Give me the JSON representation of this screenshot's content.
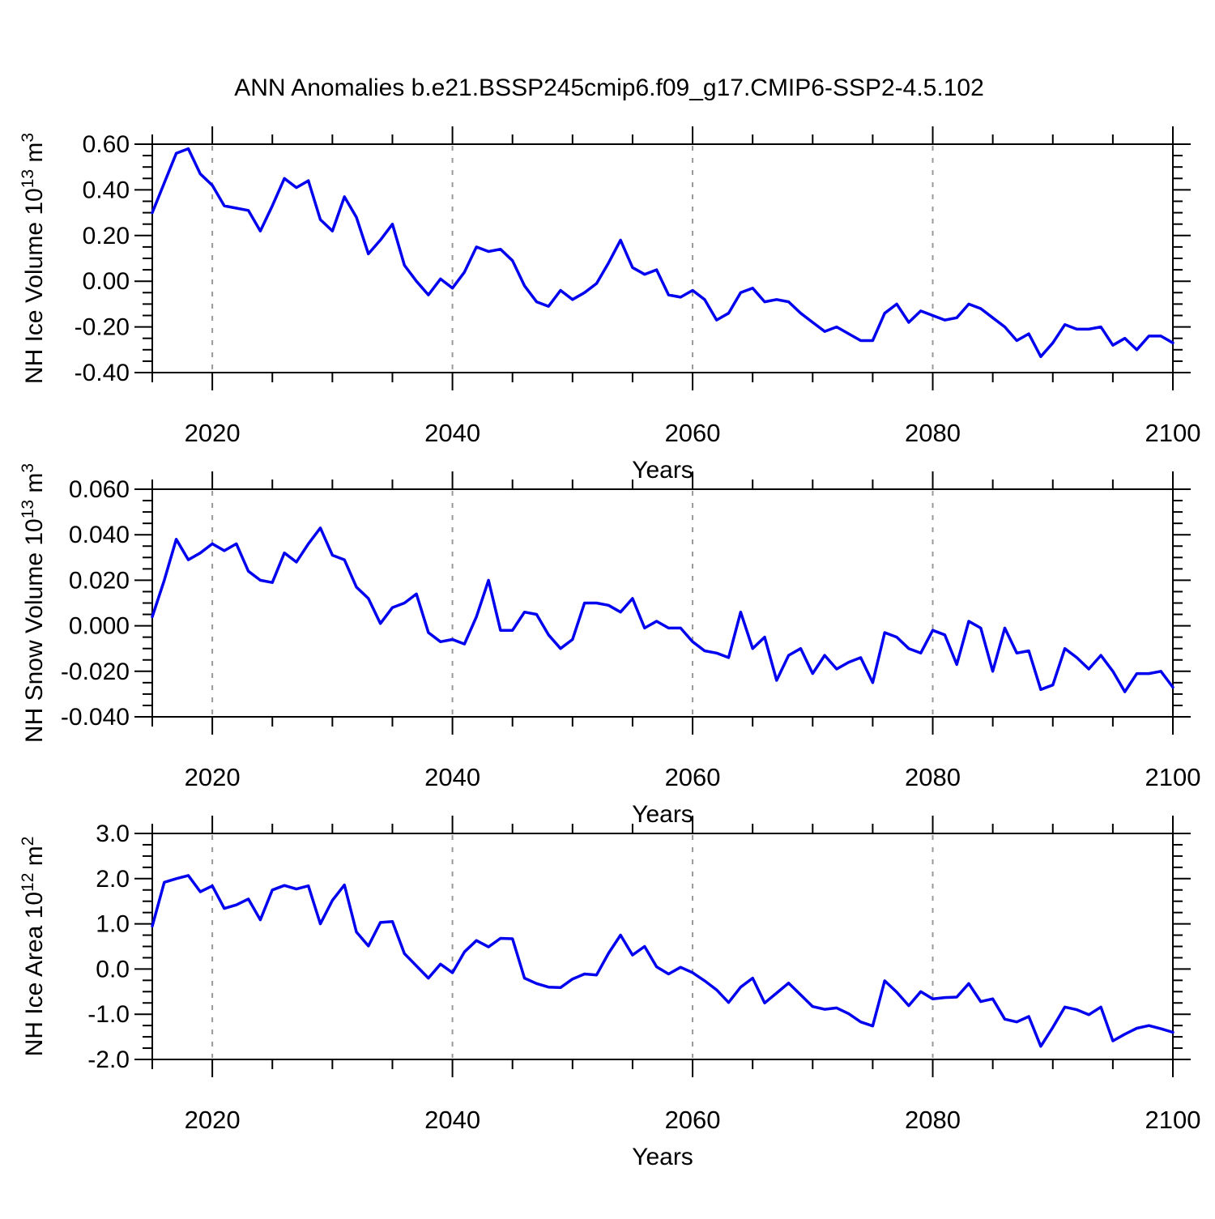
{
  "title": "ANN Anomalies b.e21.BSSP245cmip6.f09_g17.CMIP6-SSP2-4.5.102",
  "colors": {
    "line": "#0000ee",
    "grid": "#999999",
    "frame": "#000000",
    "text": "#000000",
    "background": "#ffffff"
  },
  "chart_data": [
    {
      "type": "line",
      "title": "",
      "xlabel": "Years",
      "ylabel": "NH Ice Volume 10^13 m^3",
      "ylabel_parts": [
        {
          "t": "NH Ice Volume 10"
        },
        {
          "t": "13",
          "sup": true
        },
        {
          "t": " m"
        },
        {
          "t": "3",
          "sup": true
        }
      ],
      "xlim": [
        2015,
        2100
      ],
      "ylim": [
        -0.4,
        0.6
      ],
      "x_step": 1,
      "x_minor_step": 5,
      "xtick_values": [
        2020,
        2040,
        2060,
        2080,
        2100
      ],
      "xtick_labels": [
        "2020",
        "2040",
        "2060",
        "2080",
        "2100"
      ],
      "grid_x": [
        2020,
        2040,
        2060,
        2080
      ],
      "ytick_step": 0.2,
      "y_minor_step": 0.05,
      "ytick_labels": [
        "0.60",
        "0.40",
        "0.20",
        "0.00",
        "-0.20",
        "-0.40"
      ],
      "values": [
        0.3,
        0.43,
        0.56,
        0.58,
        0.47,
        0.42,
        0.33,
        0.32,
        0.31,
        0.22,
        0.33,
        0.45,
        0.41,
        0.44,
        0.27,
        0.22,
        0.37,
        0.28,
        0.12,
        0.18,
        0.25,
        0.07,
        0.0,
        -0.06,
        0.01,
        -0.03,
        0.04,
        0.15,
        0.13,
        0.14,
        0.09,
        -0.02,
        -0.09,
        -0.11,
        -0.04,
        -0.08,
        -0.05,
        -0.01,
        0.08,
        0.18,
        0.06,
        0.03,
        0.05,
        -0.06,
        -0.07,
        -0.04,
        -0.08,
        -0.17,
        -0.14,
        -0.05,
        -0.03,
        -0.09,
        -0.08,
        -0.09,
        -0.14,
        -0.18,
        -0.22,
        -0.2,
        -0.23,
        -0.26,
        -0.26,
        -0.14,
        -0.1,
        -0.18,
        -0.13,
        -0.15,
        -0.17,
        -0.16,
        -0.1,
        -0.12,
        -0.16,
        -0.2,
        -0.26,
        -0.23,
        -0.33,
        -0.27,
        -0.19,
        -0.21,
        -0.21,
        -0.2,
        -0.28,
        -0.25,
        -0.3,
        -0.24,
        -0.24,
        -0.27
      ]
    },
    {
      "type": "line",
      "title": "",
      "xlabel": "Years",
      "ylabel": "NH Snow Volume 10^13 m^3",
      "ylabel_parts": [
        {
          "t": "NH Snow Volume 10"
        },
        {
          "t": "13",
          "sup": true
        },
        {
          "t": " m"
        },
        {
          "t": "3",
          "sup": true
        }
      ],
      "xlim": [
        2015,
        2100
      ],
      "ylim": [
        -0.04,
        0.06
      ],
      "x_step": 1,
      "x_minor_step": 5,
      "xtick_values": [
        2020,
        2040,
        2060,
        2080,
        2100
      ],
      "xtick_labels": [
        "2020",
        "2040",
        "2060",
        "2080",
        "2100"
      ],
      "grid_x": [
        2020,
        2040,
        2060,
        2080
      ],
      "ytick_step": 0.02,
      "y_minor_step": 0.005,
      "ytick_labels": [
        "0.060",
        "0.040",
        "0.020",
        "0.000",
        "-0.020",
        "-0.040"
      ],
      "values": [
        0.004,
        0.02,
        0.038,
        0.029,
        0.032,
        0.036,
        0.033,
        0.036,
        0.024,
        0.02,
        0.019,
        0.032,
        0.028,
        0.036,
        0.043,
        0.031,
        0.029,
        0.017,
        0.012,
        0.001,
        0.008,
        0.01,
        0.014,
        -0.003,
        -0.007,
        -0.006,
        -0.008,
        0.004,
        0.02,
        -0.002,
        -0.002,
        0.006,
        0.005,
        -0.004,
        -0.01,
        -0.006,
        0.01,
        0.01,
        0.009,
        0.006,
        0.012,
        -0.001,
        0.002,
        -0.001,
        -0.001,
        -0.007,
        -0.011,
        -0.012,
        -0.014,
        0.006,
        -0.01,
        -0.005,
        -0.024,
        -0.013,
        -0.01,
        -0.021,
        -0.013,
        -0.019,
        -0.016,
        -0.014,
        -0.025,
        -0.003,
        -0.005,
        -0.01,
        -0.012,
        -0.002,
        -0.004,
        -0.017,
        0.002,
        -0.001,
        -0.02,
        -0.001,
        -0.012,
        -0.011,
        -0.028,
        -0.026,
        -0.01,
        -0.014,
        -0.019,
        -0.013,
        -0.02,
        -0.029,
        -0.021,
        -0.021,
        -0.02,
        -0.027
      ]
    },
    {
      "type": "line",
      "title": "",
      "xlabel": "Years",
      "ylabel": "NH Ice Area 10^12 m^2",
      "ylabel_parts": [
        {
          "t": "NH Ice Area 10"
        },
        {
          "t": "12",
          "sup": true
        },
        {
          "t": " m"
        },
        {
          "t": "2",
          "sup": true
        }
      ],
      "xlim": [
        2015,
        2100
      ],
      "ylim": [
        -2.0,
        3.0
      ],
      "x_step": 1,
      "x_minor_step": 5,
      "xtick_values": [
        2020,
        2040,
        2060,
        2080,
        2100
      ],
      "xtick_labels": [
        "2020",
        "2040",
        "2060",
        "2080",
        "2100"
      ],
      "grid_x": [
        2020,
        2040,
        2060,
        2080
      ],
      "ytick_step": 1.0,
      "y_minor_step": 0.25,
      "ytick_labels": [
        "3.0",
        "2.0",
        "1.0",
        "0.0",
        "-1.0",
        "-2.0"
      ],
      "values": [
        0.95,
        1.92,
        2.0,
        2.07,
        1.71,
        1.84,
        1.34,
        1.42,
        1.55,
        1.09,
        1.75,
        1.85,
        1.77,
        1.84,
        1.0,
        1.52,
        1.86,
        0.82,
        0.51,
        1.03,
        1.05,
        0.34,
        0.07,
        -0.2,
        0.11,
        -0.08,
        0.38,
        0.63,
        0.49,
        0.68,
        0.67,
        -0.2,
        -0.32,
        -0.4,
        -0.41,
        -0.22,
        -0.11,
        -0.13,
        0.35,
        0.75,
        0.31,
        0.5,
        0.05,
        -0.11,
        0.04,
        -0.08,
        -0.26,
        -0.46,
        -0.74,
        -0.4,
        -0.2,
        -0.75,
        -0.53,
        -0.31,
        -0.57,
        -0.83,
        -0.89,
        -0.86,
        -0.99,
        -1.17,
        -1.26,
        -0.26,
        -0.51,
        -0.81,
        -0.5,
        -0.66,
        -0.63,
        -0.62,
        -0.32,
        -0.72,
        -0.66,
        -1.11,
        -1.17,
        -1.05,
        -1.71,
        -1.29,
        -0.84,
        -0.9,
        -1.01,
        -0.84,
        -1.59,
        -1.44,
        -1.31,
        -1.25,
        -1.32,
        -1.4
      ]
    }
  ]
}
